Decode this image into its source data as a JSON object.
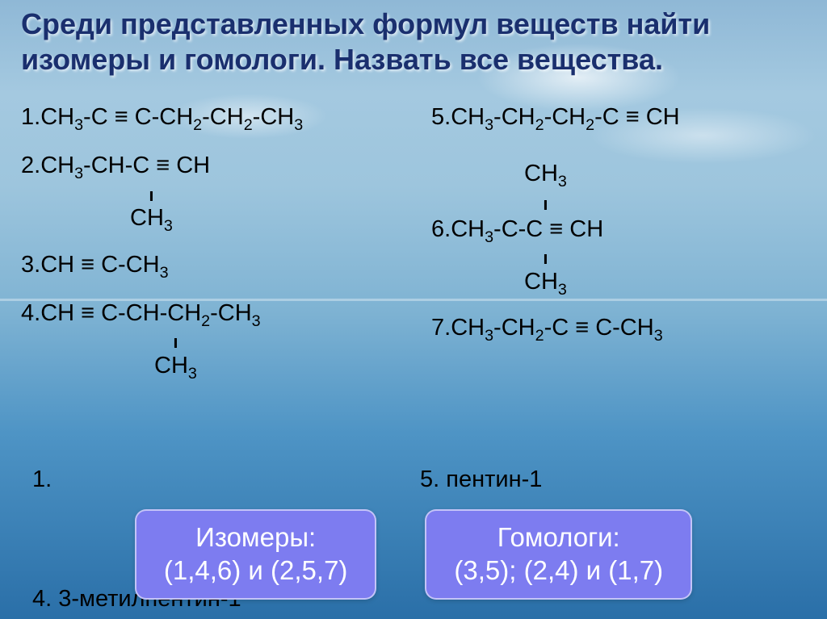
{
  "title_color": "#1a2f6e",
  "body_text_color": "#000000",
  "box_bg_color": "#7d7cf0",
  "title_line1": "Среди представленных формул веществ найти",
  "title_line2": "изомеры и гомологи. Назвать все вещества.",
  "left": {
    "f1_num": "1.",
    "f1_main": "CH3-C ≡ C-CH2-CH2-CH3",
    "f2_num": "2.",
    "f2_main": "CH3-CH-C ≡ CH",
    "f2_branch": "CH3",
    "f2_branch_pad": "135px",
    "f3_num": "3.",
    "f3_main": "CH ≡ C-CH3",
    "f4_num": "4.",
    "f4_main": "CH ≡ C-CH-CH2-CH3",
    "f4_branch": "CH3",
    "f4_branch_pad": "165px",
    "a1": "1.",
    "a4": "4. 3-метилпентин-1"
  },
  "right": {
    "f5_num": "5.",
    "f5_main": "CH3-CH2-CH2-C ≡ CH",
    "f6_num": "6.",
    "f6_above": "CH3",
    "f6_main": "CH3-C-C ≡ CH",
    "f6_branch": "CH3",
    "f6_branch_pad": "115px",
    "f6_above_pad": "115px",
    "f7_num": "7.",
    "f7_main": "CH3-CH2-C ≡ C-CH3",
    "a5": "5. пентин-1"
  },
  "box_isomers_title": "Изомеры:",
  "box_isomers_body": "(1,4,6) и (2,5,7)",
  "box_homologs_title": "Гомологи:",
  "box_homologs_body": "(3,5); (2,4) и (1,7)"
}
